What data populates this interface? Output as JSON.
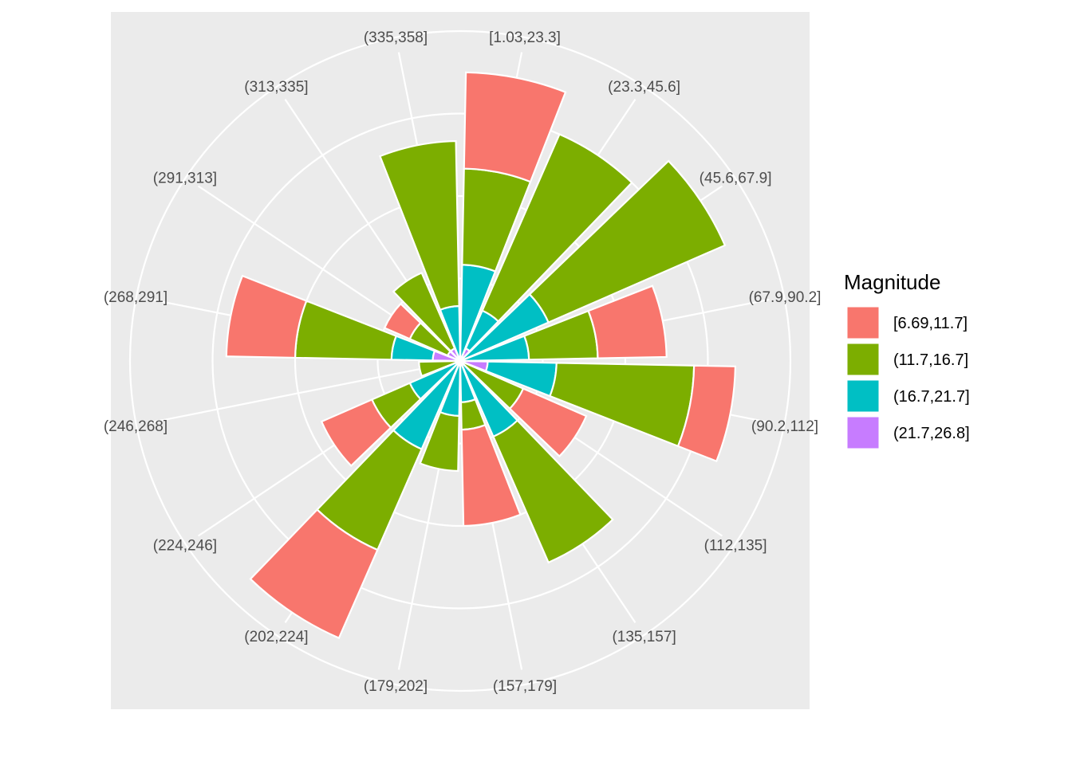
{
  "chart_data": {
    "type": "bar",
    "coord": "polar",
    "title": "",
    "xlabel": "",
    "ylabel": "",
    "categories": [
      "[1.03,23.3]",
      "(23.3,45.6]",
      "(45.6,67.9]",
      "(67.9,90.2]",
      "(90.2,112]",
      "(112,135]",
      "(135,157]",
      "(157,179]",
      "(179,202]",
      "(202,224]",
      "(224,246]",
      "(246,268]",
      "(268,291]",
      "(291,313]",
      "(313,335]",
      "(335,358]"
    ],
    "ylim": [
      0,
      26
    ],
    "grid_rings": [
      6,
      12,
      18,
      24
    ],
    "grid": true,
    "legend": {
      "title": "Magnitude",
      "placement": "right",
      "entries": [
        {
          "label": "[6.69,11.7]",
          "color": "#F8766D"
        },
        {
          "label": "(11.7,16.7]",
          "color": "#7CAE00"
        },
        {
          "label": "(16.7,21.7]",
          "color": "#00BFC4"
        },
        {
          "label": "(21.7,26.8]",
          "color": "#C77CFF"
        }
      ]
    },
    "stack_order": [
      "(21.7,26.8]",
      "(16.7,21.7]",
      "(11.7,16.7]",
      "[6.69,11.7]"
    ],
    "series": [
      {
        "name": "(21.7,26.8]",
        "values": [
          0,
          1,
          0,
          0,
          2,
          0,
          0,
          0,
          0,
          0,
          0,
          0,
          2,
          1,
          1,
          0
        ]
      },
      {
        "name": "(16.7,21.7]",
        "values": [
          7,
          3,
          7,
          5,
          5,
          0,
          6,
          3,
          4,
          7,
          4,
          0,
          3,
          0,
          0,
          4
        ]
      },
      {
        "name": "(11.7,16.7]",
        "values": [
          7,
          14,
          14,
          5,
          10,
          5,
          10,
          2,
          4,
          8,
          3,
          3,
          7,
          3,
          6,
          12
        ]
      },
      {
        "name": "[6.69,11.7]",
        "values": [
          7,
          0,
          0,
          5,
          3,
          5,
          0,
          7,
          0,
          7,
          4,
          0,
          5,
          2,
          0,
          0
        ]
      }
    ]
  }
}
